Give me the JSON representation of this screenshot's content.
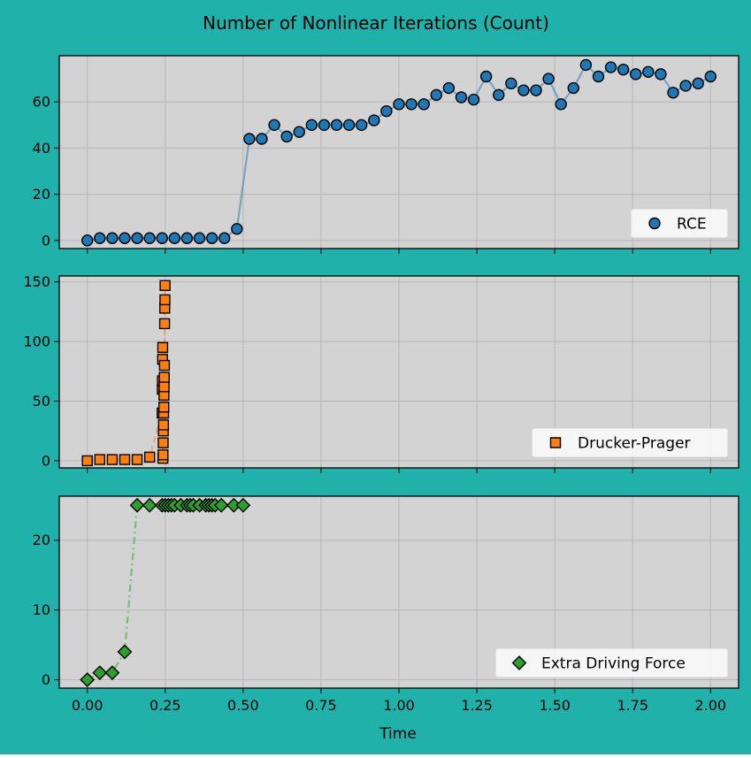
{
  "figure": {
    "title": "Number of Nonlinear Iterations (Count)",
    "background": "#20b2aa",
    "axes_facecolor": "#d3d3d3",
    "xlabel": "Time"
  },
  "chart_data": [
    {
      "type": "line",
      "series": [
        {
          "name": "RCE",
          "marker": "circle",
          "color": "#1f77b4",
          "linestyle": "solid",
          "x": [
            0.0,
            0.04,
            0.08,
            0.12,
            0.16,
            0.2,
            0.24,
            0.28,
            0.32,
            0.36,
            0.4,
            0.44,
            0.48,
            0.52,
            0.56,
            0.6,
            0.64,
            0.68,
            0.72,
            0.76,
            0.8,
            0.84,
            0.88,
            0.92,
            0.96,
            1.0,
            1.04,
            1.08,
            1.12,
            1.16,
            1.2,
            1.24,
            1.28,
            1.32,
            1.36,
            1.4,
            1.44,
            1.48,
            1.52,
            1.56,
            1.6,
            1.64,
            1.68,
            1.72,
            1.76,
            1.8,
            1.84,
            1.88,
            1.92,
            1.96,
            2.0
          ],
          "y": [
            0,
            1,
            1,
            1,
            1,
            1,
            1,
            1,
            1,
            1,
            1,
            1,
            5,
            44,
            44,
            50,
            45,
            47,
            50,
            50,
            50,
            50,
            50,
            52,
            56,
            59,
            59,
            59,
            63,
            66,
            62,
            61,
            71,
            63,
            68,
            65,
            65,
            70,
            59,
            66,
            76,
            71,
            75,
            74,
            72,
            73,
            72,
            64,
            67,
            68,
            71
          ]
        }
      ],
      "xlim": [
        -0.09,
        2.09
      ],
      "ylim": [
        -3.5,
        80
      ],
      "yticks": [
        0,
        20,
        40,
        60
      ],
      "xticks": [
        0.0,
        0.25,
        0.5,
        0.75,
        1.0,
        1.25,
        1.5,
        1.75,
        2.0
      ],
      "grid": true,
      "legend": "lower-right"
    },
    {
      "type": "line",
      "series": [
        {
          "name": "Drucker-Prager",
          "marker": "square",
          "color": "#ff7f0e",
          "linestyle": "dashed",
          "x": [
            0.0,
            0.04,
            0.08,
            0.12,
            0.16,
            0.2,
            0.24,
            0.2405,
            0.241,
            0.2415,
            0.242,
            0.2425,
            0.243,
            0.2435,
            0.244,
            0.2445,
            0.245,
            0.2455,
            0.246,
            0.2465,
            0.247,
            0.2475,
            0.248,
            0.2485,
            0.249,
            0.2495
          ],
          "y": [
            0,
            1,
            1,
            1,
            1,
            3,
            40,
            60,
            67,
            85,
            95,
            2,
            5,
            15,
            25,
            30,
            40,
            45,
            55,
            62,
            70,
            80,
            115,
            128,
            135,
            147
          ]
        }
      ],
      "xlim": [
        -0.09,
        2.09
      ],
      "ylim": [
        -6,
        155
      ],
      "yticks": [
        0,
        50,
        100,
        150
      ],
      "xticks": [
        0.0,
        0.25,
        0.5,
        0.75,
        1.0,
        1.25,
        1.5,
        1.75,
        2.0
      ],
      "grid": true,
      "legend": "lower-right"
    },
    {
      "type": "line",
      "series": [
        {
          "name": "Extra Driving Force",
          "marker": "diamond",
          "color": "#2ca02c",
          "linestyle": "dashdot",
          "x": [
            0.0,
            0.04,
            0.08,
            0.12,
            0.16,
            0.2,
            0.24,
            0.25,
            0.26,
            0.27,
            0.28,
            0.3,
            0.32,
            0.33,
            0.34,
            0.36,
            0.38,
            0.39,
            0.4,
            0.41,
            0.43,
            0.47,
            0.5
          ],
          "y": [
            0,
            1,
            1,
            4,
            25,
            25,
            25,
            25,
            25,
            25,
            25,
            25,
            25,
            25,
            25,
            25,
            25,
            25,
            25,
            25,
            25,
            25,
            25
          ]
        }
      ],
      "xlim": [
        -0.09,
        2.09
      ],
      "ylim": [
        -1.2,
        26.3
      ],
      "yticks": [
        0,
        10,
        20
      ],
      "xticks": [
        0.0,
        0.25,
        0.5,
        0.75,
        1.0,
        1.25,
        1.5,
        1.75,
        2.0
      ],
      "xtick_labels": [
        "0.00",
        "0.25",
        "0.50",
        "0.75",
        "1.00",
        "1.25",
        "1.50",
        "1.75",
        "2.00"
      ],
      "grid": true,
      "legend": "lower-right"
    }
  ]
}
